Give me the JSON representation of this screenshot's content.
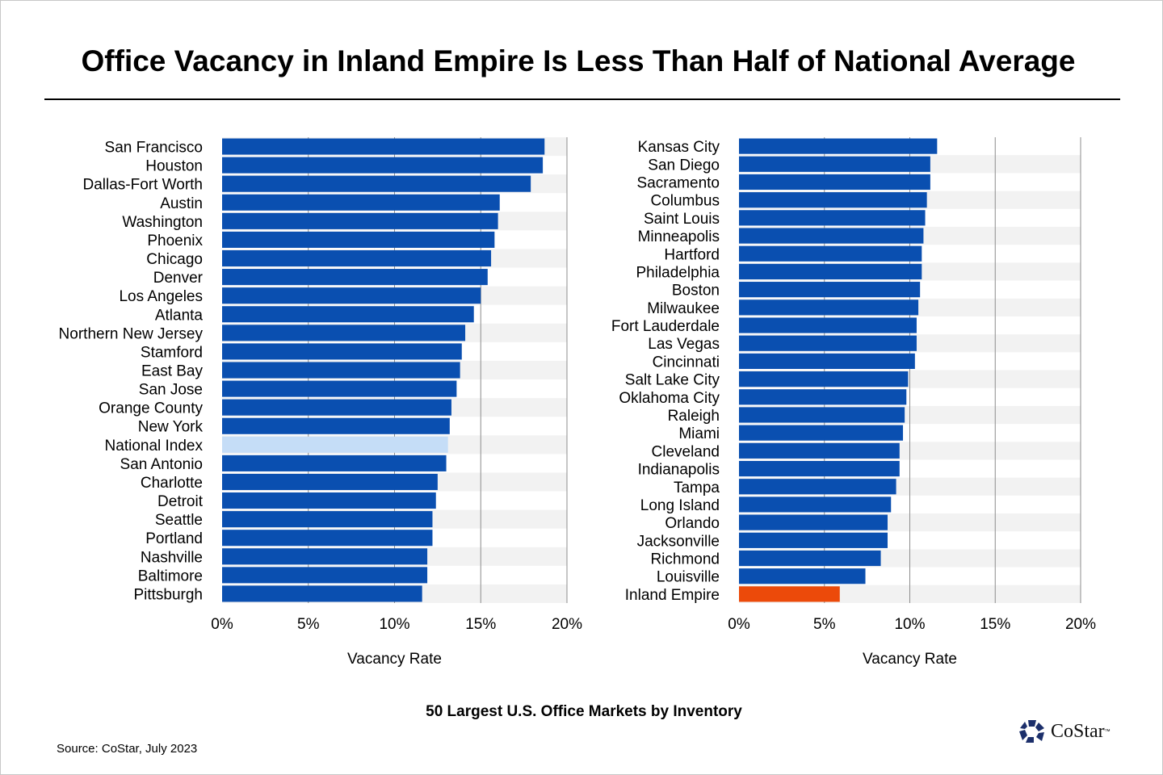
{
  "title": "Office Vacancy in Inland Empire Is Less Than Half of National Average",
  "subtitle": "50 Largest U.S. Office Markets by Inventory",
  "source": "Source: CoStar, July 2023",
  "logo": {
    "text": "CoStar",
    "tm": "™"
  },
  "colors": {
    "bar": "#0a4fb0",
    "national": "#c5ddf7",
    "highlight": "#ec4a0a",
    "band": "#f2f2f2"
  },
  "chart_data": [
    {
      "type": "bar",
      "orientation": "horizontal",
      "xlabel": "Vacancy Rate",
      "xlim": [
        0,
        20
      ],
      "ticks": [
        "0%",
        "5%",
        "10%",
        "15%",
        "20%"
      ],
      "categories": [
        "San Francisco",
        "Houston",
        "Dallas-Fort Worth",
        "Austin",
        "Washington",
        "Phoenix",
        "Chicago",
        "Denver",
        "Los Angeles",
        "Atlanta",
        "Northern New Jersey",
        "Stamford",
        "East Bay",
        "San Jose",
        "Orange County",
        "New York",
        "National Index",
        "San Antonio",
        "Charlotte",
        "Detroit",
        "Seattle",
        "Portland",
        "Nashville",
        "Baltimore",
        "Pittsburgh"
      ],
      "values": [
        18.7,
        18.6,
        17.9,
        16.1,
        16.0,
        15.8,
        15.6,
        15.4,
        15.0,
        14.6,
        14.1,
        13.9,
        13.8,
        13.6,
        13.3,
        13.2,
        13.1,
        13.0,
        12.5,
        12.4,
        12.2,
        12.2,
        11.9,
        11.9,
        11.6
      ],
      "highlight": {
        "National Index": "national"
      }
    },
    {
      "type": "bar",
      "orientation": "horizontal",
      "xlabel": "Vacancy Rate",
      "xlim": [
        0,
        20
      ],
      "ticks": [
        "0%",
        "5%",
        "10%",
        "15%",
        "20%"
      ],
      "categories": [
        "Kansas City",
        "San Diego",
        "Sacramento",
        "Columbus",
        "Saint Louis",
        "Minneapolis",
        "Hartford",
        "Philadelphia",
        "Boston",
        "Milwaukee",
        "Fort Lauderdale",
        "Las Vegas",
        "Cincinnati",
        "Salt Lake City",
        "Oklahoma City",
        "Raleigh",
        "Miami",
        "Cleveland",
        "Indianapolis",
        "Tampa",
        "Long Island",
        "Orlando",
        "Jacksonville",
        "Richmond",
        "Louisville",
        "Inland Empire"
      ],
      "values": [
        11.6,
        11.2,
        11.2,
        11.0,
        10.9,
        10.8,
        10.7,
        10.7,
        10.6,
        10.5,
        10.4,
        10.4,
        10.3,
        9.9,
        9.8,
        9.7,
        9.6,
        9.4,
        9.4,
        9.2,
        8.9,
        8.7,
        8.7,
        8.3,
        7.4,
        5.9
      ],
      "highlight": {
        "Inland Empire": "highlight"
      }
    }
  ]
}
